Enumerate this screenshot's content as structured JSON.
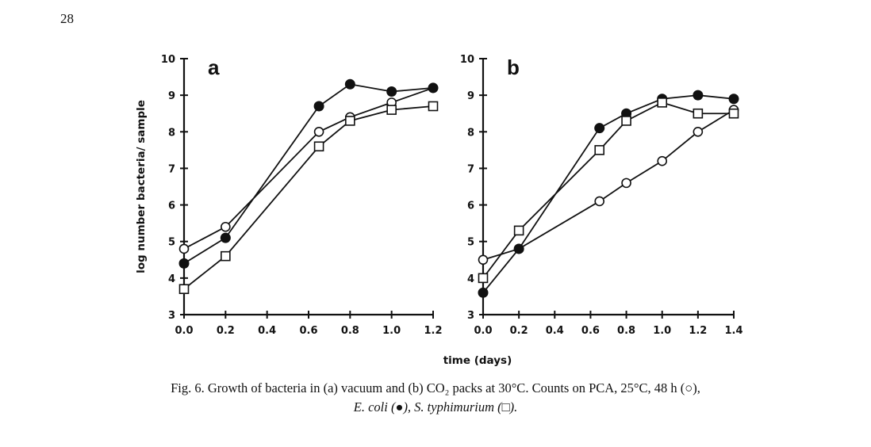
{
  "page_number": "28",
  "caption": {
    "line1": "Fig. 6. Growth of bacteria in (a) vacuum and (b) CO₂ packs at 30°C. Counts on PCA, 25°C, 48 h (○),",
    "line2": "E. coli (●), S. typhimurium (□)."
  },
  "chart_data": [
    {
      "type": "line",
      "panel_label": "a",
      "ylabel": "log number bacteria/ sample",
      "xlabel": "time (days)",
      "xlim": [
        0,
        1.2
      ],
      "ylim": [
        3,
        10
      ],
      "xticks": [
        "0.0",
        "0.2",
        "0.4",
        "0.6",
        "0.8",
        "1.0",
        "1.2"
      ],
      "yticks": [
        "3",
        "4",
        "5",
        "6",
        "7",
        "8",
        "9",
        "10"
      ],
      "series": [
        {
          "marker": "open-circle",
          "x": [
            0.0,
            0.2,
            0.65,
            0.8,
            1.0,
            1.2
          ],
          "y": [
            4.8,
            5.4,
            8.0,
            8.4,
            8.8,
            9.2
          ]
        },
        {
          "marker": "filled-circle",
          "x": [
            0.0,
            0.2,
            0.65,
            0.8,
            1.0,
            1.2
          ],
          "y": [
            4.4,
            5.1,
            8.7,
            9.3,
            9.1,
            9.2
          ]
        },
        {
          "marker": "open-square",
          "x": [
            0.0,
            0.2,
            0.65,
            0.8,
            1.0,
            1.2
          ],
          "y": [
            3.7,
            4.6,
            7.6,
            8.3,
            8.6,
            8.7
          ]
        }
      ]
    },
    {
      "type": "line",
      "panel_label": "b",
      "xlabel": "time (days)",
      "xlim": [
        0,
        1.4
      ],
      "ylim": [
        3,
        10
      ],
      "xticks": [
        "0.0",
        "0.2",
        "0.4",
        "0.6",
        "0.8",
        "1.0",
        "1.2",
        "1.4"
      ],
      "yticks": [
        "3",
        "4",
        "5",
        "6",
        "7",
        "8",
        "9",
        "10"
      ],
      "series": [
        {
          "marker": "open-circle",
          "x": [
            0.0,
            0.2,
            0.65,
            0.8,
            1.0,
            1.2,
            1.4
          ],
          "y": [
            4.5,
            4.8,
            6.1,
            6.6,
            7.2,
            8.0,
            8.6
          ]
        },
        {
          "marker": "filled-circle",
          "x": [
            0.0,
            0.2,
            0.65,
            0.8,
            1.0,
            1.2,
            1.4
          ],
          "y": [
            3.6,
            4.8,
            8.1,
            8.5,
            8.9,
            9.0,
            8.9
          ]
        },
        {
          "marker": "open-square",
          "x": [
            0.0,
            0.2,
            0.65,
            0.8,
            1.0,
            1.2,
            1.4
          ],
          "y": [
            4.0,
            5.3,
            7.5,
            8.3,
            8.8,
            8.5,
            8.5
          ]
        }
      ]
    }
  ]
}
